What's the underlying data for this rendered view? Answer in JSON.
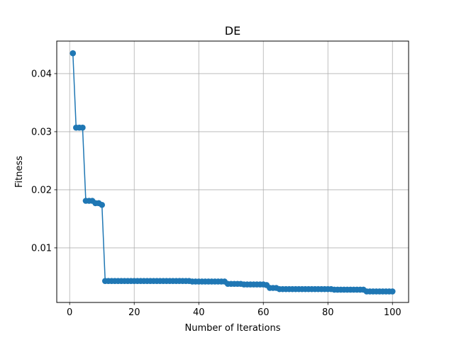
{
  "chart_data": {
    "type": "line",
    "title": "DE",
    "xlabel": "Number of Iterations",
    "ylabel": "Fitness",
    "xlim": [
      -4,
      105
    ],
    "ylim": [
      0.0006,
      0.0456
    ],
    "xticks": [
      0,
      20,
      40,
      60,
      80,
      100
    ],
    "yticks": [
      0.01,
      0.02,
      0.03,
      0.04
    ],
    "xtick_labels": [
      "0",
      "20",
      "40",
      "60",
      "80",
      "100"
    ],
    "ytick_labels": [
      "0.01",
      "0.02",
      "0.03",
      "0.04"
    ],
    "grid": true,
    "legend": "none",
    "series": [
      {
        "color": "#1f77b4",
        "marker": "circle",
        "x": [
          1,
          2,
          3,
          4,
          5,
          6,
          7,
          8,
          9,
          10,
          11,
          12,
          13,
          14,
          15,
          16,
          17,
          18,
          19,
          20,
          21,
          22,
          23,
          24,
          25,
          26,
          27,
          28,
          29,
          30,
          31,
          32,
          33,
          34,
          35,
          36,
          37,
          38,
          39,
          40,
          41,
          42,
          43,
          44,
          45,
          46,
          47,
          48,
          49,
          50,
          51,
          52,
          53,
          54,
          55,
          56,
          57,
          58,
          59,
          60,
          61,
          62,
          63,
          64,
          65,
          66,
          67,
          68,
          69,
          70,
          71,
          72,
          73,
          74,
          75,
          76,
          77,
          78,
          79,
          80,
          81,
          82,
          83,
          84,
          85,
          86,
          87,
          88,
          89,
          90,
          91,
          92,
          93,
          94,
          95,
          96,
          97,
          98,
          99,
          100
        ],
        "y": [
          0.0435,
          0.0307,
          0.0307,
          0.0307,
          0.0181,
          0.0181,
          0.0181,
          0.0177,
          0.0177,
          0.0174,
          0.0043,
          0.0043,
          0.0043,
          0.0043,
          0.0043,
          0.0043,
          0.0043,
          0.0043,
          0.0043,
          0.0043,
          0.0043,
          0.0043,
          0.0043,
          0.0043,
          0.0043,
          0.0043,
          0.0043,
          0.0043,
          0.0043,
          0.0043,
          0.0043,
          0.0043,
          0.0043,
          0.0043,
          0.0043,
          0.0043,
          0.0043,
          0.0042,
          0.0042,
          0.0042,
          0.0042,
          0.0042,
          0.0042,
          0.0042,
          0.0042,
          0.0042,
          0.0042,
          0.0042,
          0.0038,
          0.0038,
          0.0038,
          0.0038,
          0.0038,
          0.0037,
          0.0037,
          0.0037,
          0.0037,
          0.0037,
          0.0037,
          0.0037,
          0.0036,
          0.0031,
          0.0031,
          0.0031,
          0.0029,
          0.0029,
          0.0029,
          0.0029,
          0.0029,
          0.0029,
          0.0029,
          0.0029,
          0.0029,
          0.0029,
          0.0029,
          0.0029,
          0.0029,
          0.0029,
          0.0029,
          0.0029,
          0.0029,
          0.0028,
          0.0028,
          0.0028,
          0.0028,
          0.0028,
          0.0028,
          0.0028,
          0.0028,
          0.0028,
          0.0028,
          0.0025,
          0.0025,
          0.0025,
          0.0025,
          0.0025,
          0.0025,
          0.0025,
          0.0025,
          0.0025
        ]
      }
    ]
  }
}
